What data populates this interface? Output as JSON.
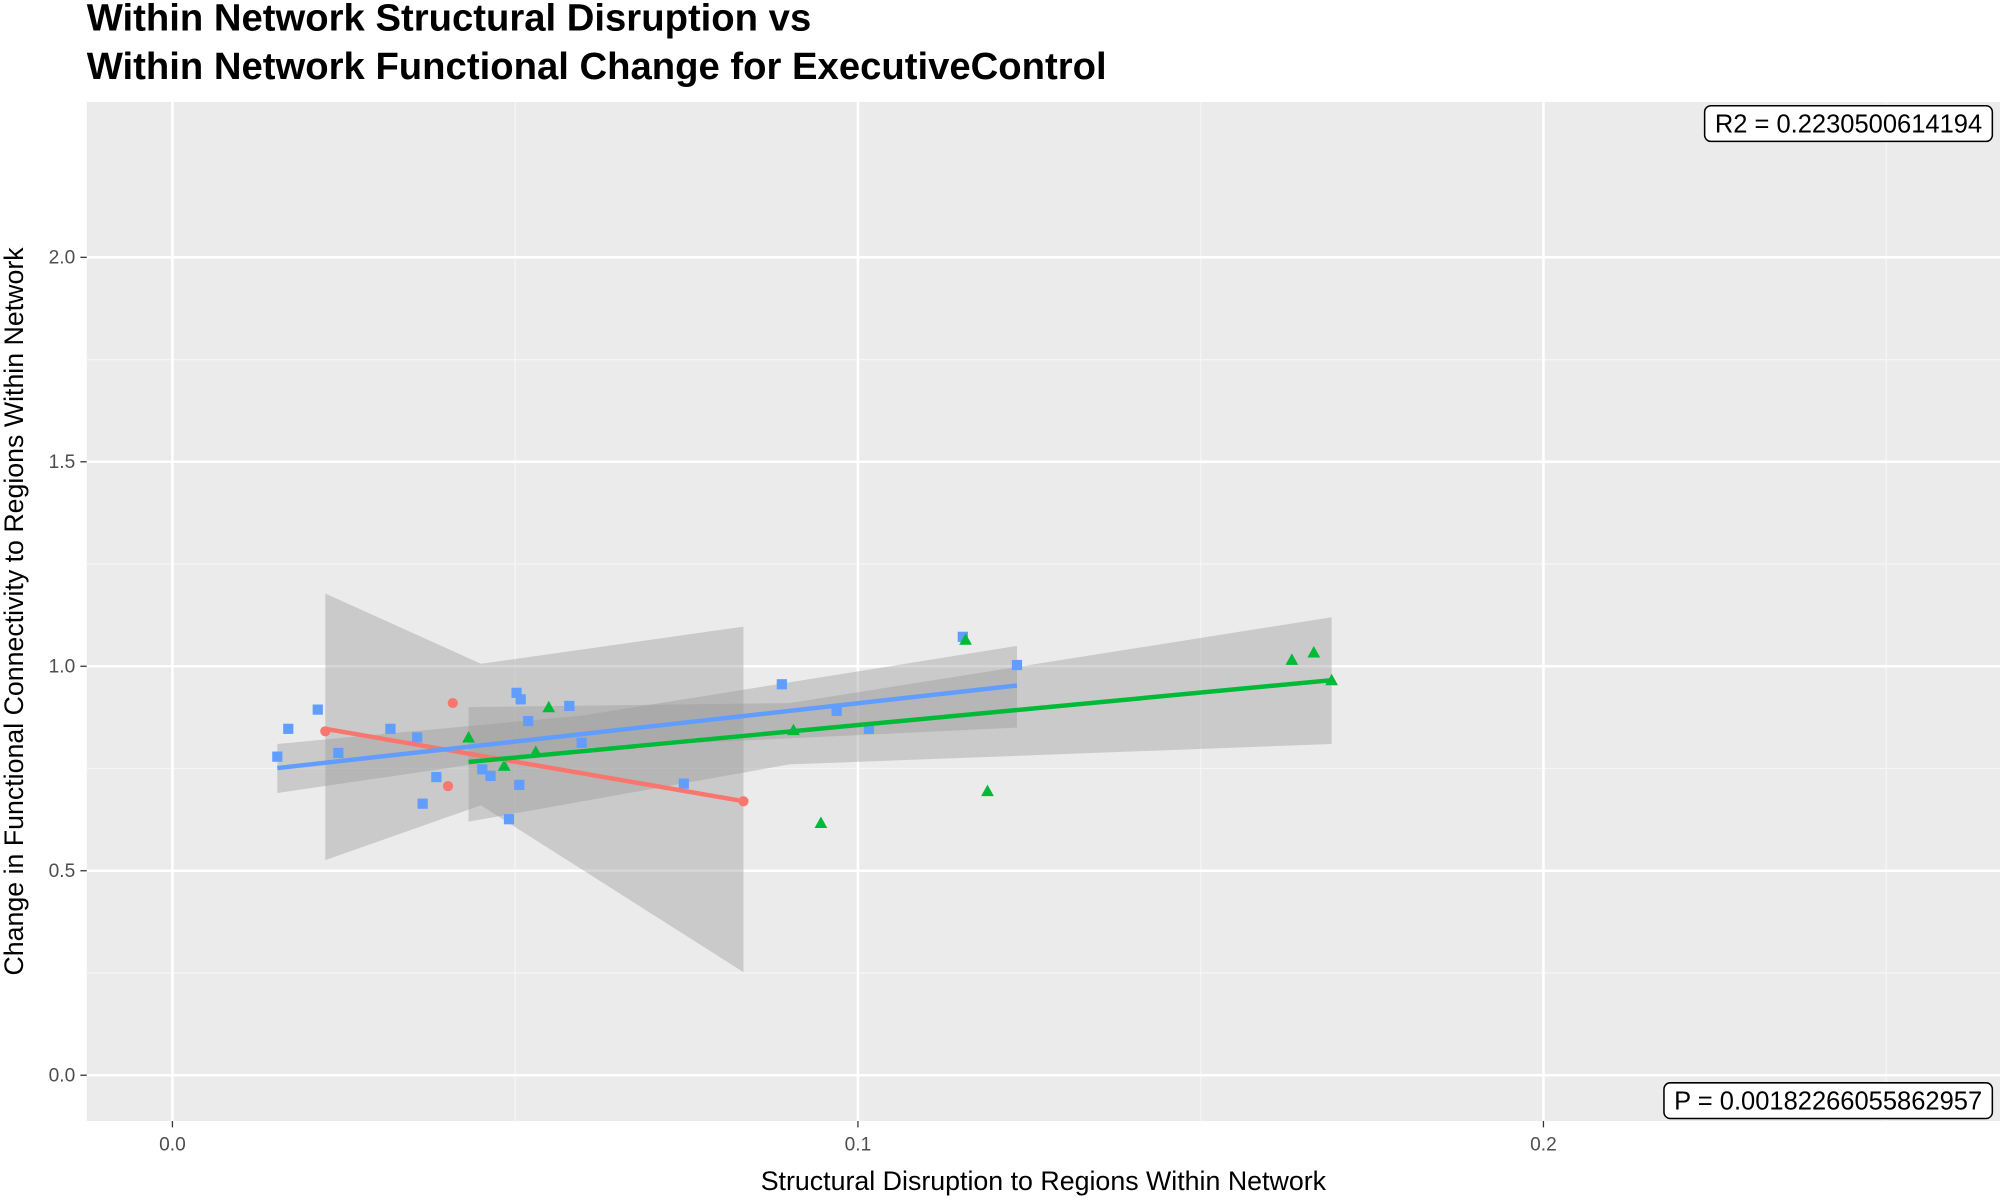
{
  "chart_data": {
    "type": "scatter",
    "title": [
      "Within Network Structural Disruption vs",
      "Within Network Functional Change for ExecutiveControl"
    ],
    "x_label": "Structural Disruption to Regions Within Network",
    "y_label": "Change in Functional Connectivity to Regions Within Network",
    "annotations": [
      "R2 =  0.2230500614194",
      "P =  0.00182266055862957"
    ],
    "xlim": [
      -0.0125,
      0.2666
    ],
    "ylim": [
      -0.112,
      2.38
    ],
    "xticks": [
      {
        "value": 0,
        "label": "0.0"
      },
      0.1,
      0.2
    ],
    "yticks": [
      {
        "value": 0,
        "label": "0.0"
      },
      0.5,
      {
        "value": 1,
        "label": "1.0"
      },
      1.5,
      {
        "value": 2,
        "label": "2.0"
      }
    ],
    "grid": true,
    "series": [
      {
        "color": "#f8766d",
        "marker": "circle",
        "x": [
          0.0223,
          0.0409,
          0.0402,
          0.0833
        ],
        "values": [
          0.841,
          0.91,
          0.707,
          0.67
        ],
        "fit": {
          "x": [
            0.0223,
            0.0833
          ],
          "values": [
            0.847,
            0.67
          ]
        },
        "band": {
          "x": [
            0.0223,
            0.045,
            0.0833
          ],
          "lower": [
            0.526,
            0.66,
            0.252
          ],
          "upper": [
            1.178,
            1.006,
            1.097
          ]
        }
      },
      {
        "color": "#619cff",
        "marker": "square",
        "x": [
          0.0153,
          0.0169,
          0.0212,
          0.0242,
          0.0318,
          0.0357,
          0.0365,
          0.0385,
          0.0452,
          0.0464,
          0.0491,
          0.0502,
          0.0508,
          0.0506,
          0.0519,
          0.0579,
          0.0597,
          0.0746,
          0.0889,
          0.0969,
          0.1016,
          0.1153,
          0.1232
        ],
        "values": [
          0.779,
          0.847,
          0.894,
          0.788,
          0.847,
          0.826,
          0.664,
          0.729,
          0.748,
          0.732,
          0.626,
          0.935,
          0.919,
          0.71,
          0.866,
          0.903,
          0.813,
          0.713,
          0.956,
          0.891,
          0.847,
          1.072,
          1.003
        ],
        "fit": {
          "x": [
            0.0153,
            0.1232
          ],
          "values": [
            0.751,
            0.953
          ]
        },
        "band": {
          "x": [
            0.0153,
            0.06,
            0.1232
          ],
          "lower": [
            0.69,
            0.8,
            0.85
          ],
          "upper": [
            0.81,
            0.88,
            1.05
          ]
        }
      },
      {
        "color": "#00ba38",
        "marker": "triangle",
        "x": [
          0.0432,
          0.0484,
          0.053,
          0.0549,
          0.0906,
          0.0946,
          0.1157,
          0.1189,
          0.1633,
          0.1665,
          0.1691
        ],
        "values": [
          0.826,
          0.757,
          0.791,
          0.9,
          0.844,
          0.617,
          1.065,
          0.695,
          1.016,
          1.034,
          0.966
        ],
        "fit": {
          "x": [
            0.0432,
            0.1691
          ],
          "values": [
            0.766,
            0.966
          ]
        },
        "band": {
          "x": [
            0.0432,
            0.09,
            0.1691
          ],
          "lower": [
            0.62,
            0.76,
            0.81
          ],
          "upper": [
            0.9,
            0.91,
            1.12
          ]
        }
      }
    ]
  }
}
